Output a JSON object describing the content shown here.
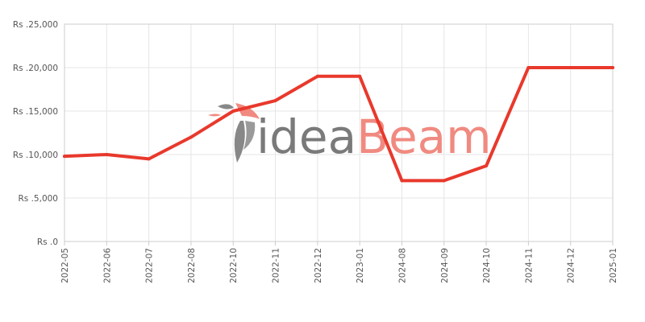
{
  "watermark": {
    "part1": "idea",
    "part2": "Beam",
    "part1_color": "#7a7a7a",
    "part2_color": "#f08a80",
    "bird_color": "#888888",
    "bird_accent": "#f08a80"
  },
  "chart_data": {
    "type": "line",
    "title": "",
    "xlabel": "",
    "ylabel": "",
    "categories": [
      "2022-05",
      "2022-06",
      "2022-07",
      "2022-08",
      "2022-10",
      "2022-11",
      "2022-12",
      "2023-01",
      "2024-08",
      "2024-09",
      "2024-10",
      "2024-11",
      "2024-12",
      "2025-01"
    ],
    "series": [
      {
        "color": "#e8392c",
        "values": [
          9800,
          10000,
          9500,
          12000,
          15000,
          16200,
          19000,
          19000,
          7000,
          7000,
          8700,
          20000,
          20000,
          20000
        ]
      }
    ],
    "ylim": [
      0,
      25000
    ],
    "yticks": [
      0,
      5000,
      10000,
      15000,
      20000,
      25000
    ],
    "ytick_labels": [
      "Rs .0",
      "Rs .5,000",
      "Rs .10,000",
      "Rs .15,000",
      "Rs .20,000",
      "Rs .25,000"
    ],
    "grid": true,
    "legend": "none"
  }
}
